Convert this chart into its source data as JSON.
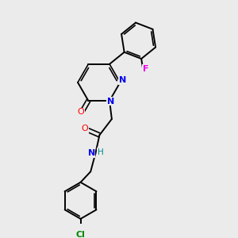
{
  "bg_color": "#ebebeb",
  "bond_color": "#000000",
  "atom_colors": {
    "N": "#0000ee",
    "O": "#ff0000",
    "Cl": "#008800",
    "F": "#ee00ee",
    "H": "#008888",
    "C": "#000000"
  },
  "figsize": [
    3.0,
    3.0
  ],
  "dpi": 100,
  "lw": 1.4,
  "lw_double": 1.2,
  "fs": 7.5
}
